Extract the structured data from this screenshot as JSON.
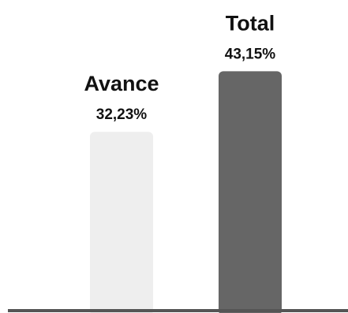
{
  "colors": {
    "avance_bar": "#eeeeee",
    "total_bar": "#666666",
    "baseline": "#555555",
    "text": "#111111"
  },
  "chart_data": {
    "type": "bar",
    "categories": [
      "Avance",
      "Total"
    ],
    "values": [
      32.23,
      43.15
    ],
    "value_labels": [
      "32,23%",
      "43,15%"
    ],
    "title": "",
    "xlabel": "",
    "ylabel": "",
    "ylim": [
      0,
      56
    ],
    "grid": false,
    "legend": "none"
  }
}
